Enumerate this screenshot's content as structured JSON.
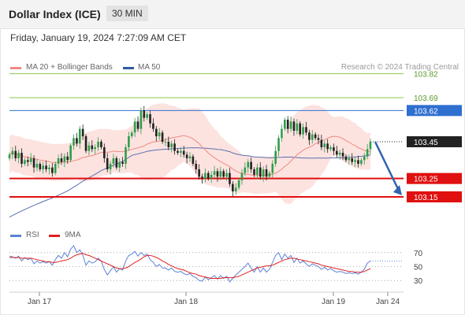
{
  "header": {
    "title": "Dollar Index (ICE)",
    "timeframe": "30 MIN"
  },
  "timestamp": "Friday, January 19, 2024 7:27:09 AM CET",
  "legend": {
    "bb": {
      "label": "MA 20 + Bollinger Bands",
      "color": "#f08a80"
    },
    "ma50": {
      "label": "MA 50",
      "color": "#2f5a9c"
    }
  },
  "credit": "Research © 2024 Trading Central",
  "rsi_legend": {
    "rsi": {
      "label": "RSI",
      "color": "#5b83d6"
    },
    "ma9": {
      "label": "9MA",
      "color": "#e02020"
    }
  },
  "chart_data": [
    {
      "type": "candlestick",
      "title": "Dollar Index (ICE)",
      "timeframe": "30 MIN",
      "x_tick_labels": [
        "Jan 17",
        "Jan 18",
        "Jan 19",
        "Jan 24"
      ],
      "ylim": [
        103.0,
        103.9
      ],
      "levels": [
        {
          "value": 103.82,
          "label": "103.82",
          "kind": "target",
          "color": "#8cc84b"
        },
        {
          "value": 103.69,
          "label": "103.69",
          "kind": "target",
          "color": "#8cc84b"
        },
        {
          "value": 103.62,
          "label": "103.62",
          "kind": "pivot",
          "color": "#2f6fd0"
        },
        {
          "value": 103.45,
          "label": "103.45",
          "kind": "last",
          "color": "#222222"
        },
        {
          "value": 103.25,
          "label": "103.25",
          "kind": "support",
          "color": "#e01010"
        },
        {
          "value": 103.15,
          "label": "103.15",
          "kind": "support",
          "color": "#e01010"
        }
      ],
      "last_price": 103.45,
      "projection": {
        "from": 103.45,
        "to": 103.15
      },
      "close": [
        103.38,
        103.4,
        103.36,
        103.39,
        103.33,
        103.35,
        103.34,
        103.36,
        103.31,
        103.33,
        103.3,
        103.32,
        103.3,
        103.31,
        103.28,
        103.33,
        103.36,
        103.34,
        103.37,
        103.35,
        103.43,
        103.47,
        103.44,
        103.52,
        103.48,
        103.4,
        103.43,
        103.41,
        103.42,
        103.45,
        103.42,
        103.36,
        103.3,
        103.33,
        103.36,
        103.31,
        103.34,
        103.33,
        103.42,
        103.48,
        103.5,
        103.56,
        103.52,
        103.62,
        103.58,
        103.6,
        103.55,
        103.52,
        103.48,
        103.5,
        103.45,
        103.45,
        103.42,
        103.44,
        103.4,
        103.39,
        103.4,
        103.38,
        103.36,
        103.37,
        103.33,
        103.3,
        103.26,
        103.25,
        103.28,
        103.25,
        103.27,
        103.29,
        103.26,
        103.29,
        103.26,
        103.28,
        103.22,
        103.18,
        103.2,
        103.24,
        103.28,
        103.31,
        103.34,
        103.3,
        103.27,
        103.31,
        103.26,
        103.3,
        103.26,
        103.28,
        103.33,
        103.4,
        103.47,
        103.52,
        103.57,
        103.52,
        103.56,
        103.51,
        103.55,
        103.49,
        103.53,
        103.5,
        103.46,
        103.49,
        103.47,
        103.46,
        103.42,
        103.44,
        103.41,
        103.42,
        103.4,
        103.38,
        103.39,
        103.37,
        103.35,
        103.36,
        103.34,
        103.35,
        103.33,
        103.35,
        103.37,
        103.41,
        103.45
      ]
    },
    {
      "type": "line",
      "title": "RSI",
      "series": [
        {
          "name": "RSI",
          "values": [
            65,
            64,
            62,
            65,
            58,
            63,
            60,
            62,
            54,
            58,
            55,
            57,
            55,
            57,
            52,
            60,
            66,
            62,
            70,
            64,
            75,
            80,
            70,
            74,
            66,
            52,
            58,
            55,
            57,
            62,
            58,
            46,
            38,
            44,
            50,
            42,
            47,
            45,
            58,
            66,
            68,
            72,
            65,
            70,
            66,
            68,
            60,
            56,
            50,
            53,
            48,
            48,
            45,
            48,
            43,
            42,
            43,
            40,
            38,
            40,
            36,
            34,
            30,
            29,
            35,
            31,
            34,
            37,
            32,
            37,
            33,
            36,
            28,
            33,
            38,
            42,
            46,
            50,
            55,
            48,
            42,
            50,
            42,
            48,
            42,
            46,
            56,
            66,
            70,
            60,
            68,
            62,
            66,
            56,
            62,
            55,
            58,
            54,
            50,
            54,
            52,
            50,
            46,
            49,
            45,
            47,
            44,
            42,
            43,
            42,
            40,
            41,
            40,
            41,
            39,
            42,
            46,
            55,
            58
          ]
        },
        {
          "name": "9MA",
          "values": [
            63,
            63,
            63,
            63,
            62,
            62,
            62,
            62,
            61,
            60,
            59,
            58,
            57,
            57,
            56,
            56,
            57,
            58,
            59,
            60,
            62,
            65,
            67,
            68,
            69,
            67,
            66,
            64,
            62,
            60,
            58,
            56,
            54,
            52,
            50,
            48,
            47,
            47,
            48,
            50,
            53,
            56,
            58,
            61,
            64,
            66,
            66,
            65,
            63,
            61,
            58,
            56,
            53,
            51,
            49,
            47,
            46,
            45,
            43,
            41,
            40,
            39,
            37,
            36,
            35,
            34,
            33,
            33,
            33,
            33,
            34,
            34,
            34,
            34,
            35,
            36,
            38,
            40,
            42,
            44,
            46,
            48,
            49,
            50,
            51,
            51,
            52,
            54,
            56,
            58,
            60,
            61,
            62,
            62,
            61,
            60,
            59,
            58,
            57,
            56,
            55,
            54,
            52,
            51,
            50,
            49,
            48,
            47,
            46,
            45,
            44,
            43,
            43,
            42,
            42,
            42,
            43,
            45,
            47
          ]
        }
      ],
      "ylim": [
        20,
        80
      ],
      "y_ticks": [
        70,
        50,
        30
      ],
      "last_value": 58
    }
  ]
}
